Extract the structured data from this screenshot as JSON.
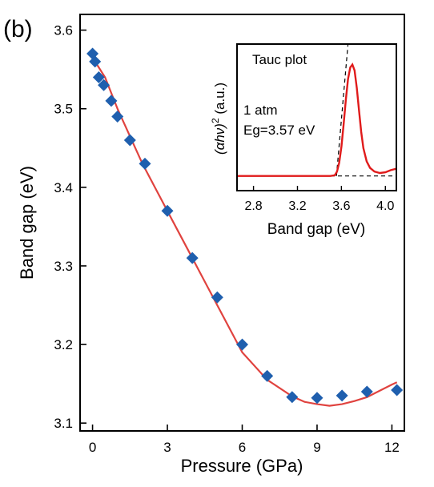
{
  "panel_label": "(b)",
  "colors": {
    "marker": "#1f5fae",
    "fit": "#e0433f",
    "inset_curve": "#e01b1b",
    "axis": "#000000"
  },
  "chart_data": [
    {
      "type": "scatter",
      "xlabel": "Pressure (GPa)",
      "ylabel": "Band gap (eV)",
      "xlim": [
        -0.5,
        12.5
      ],
      "ylim": [
        3.09,
        3.62
      ],
      "xticks": [
        0,
        3,
        6,
        9,
        12
      ],
      "yticks": [
        3.1,
        3.2,
        3.3,
        3.4,
        3.5,
        3.6
      ],
      "xtick_labels": [
        "0",
        "3",
        "6",
        "9",
        "12"
      ],
      "ytick_labels": [
        "3.1",
        "3.2",
        "3.3",
        "3.4",
        "3.5",
        "3.6"
      ],
      "series": [
        {
          "marker": "diamond",
          "x": [
            0.0,
            0.1,
            0.25,
            0.45,
            0.75,
            1.0,
            1.5,
            2.1,
            3.0,
            4.0,
            5.0,
            6.0,
            7.0,
            8.0,
            9.0,
            10.0,
            11.0,
            12.2
          ],
          "y": [
            3.57,
            3.56,
            3.54,
            3.53,
            3.51,
            3.49,
            3.46,
            3.43,
            3.37,
            3.31,
            3.26,
            3.2,
            3.16,
            3.133,
            3.132,
            3.135,
            3.14,
            3.142
          ]
        },
        {
          "type": "line",
          "x": [
            0.0,
            0.5,
            1.0,
            2.0,
            3.0,
            4.0,
            5.0,
            6.0,
            7.0,
            8.0,
            8.5,
            9.0,
            9.5,
            10.0,
            10.5,
            11.0,
            11.5,
            12.0,
            12.2
          ],
          "y": [
            3.565,
            3.54,
            3.5,
            3.43,
            3.37,
            3.31,
            3.25,
            3.19,
            3.155,
            3.134,
            3.127,
            3.124,
            3.122,
            3.124,
            3.128,
            3.133,
            3.141,
            3.149,
            3.152
          ]
        }
      ]
    },
    {
      "type": "line",
      "title": "Tauc plot",
      "annotations": [
        "1 atm",
        "Eg=3.57 eV"
      ],
      "xlabel": "Band gap (eV)",
      "ylabel_prefix": "(αhν)",
      "ylabel_sup": "2",
      "ylabel_suffix": " (a.u.)",
      "xlim": [
        2.65,
        4.1
      ],
      "ylim": [
        0,
        1
      ],
      "xticks": [
        2.8,
        3.2,
        3.6,
        4.0
      ],
      "xtick_labels": [
        "2.8",
        "3.2",
        "3.6",
        "4.0"
      ],
      "series": [
        {
          "x": [
            2.65,
            3.4,
            3.5,
            3.54,
            3.56,
            3.58,
            3.6,
            3.62,
            3.64,
            3.66,
            3.68,
            3.7,
            3.72,
            3.74,
            3.76,
            3.78,
            3.8,
            3.83,
            3.86,
            3.9,
            3.95,
            4.0,
            4.05,
            4.1
          ],
          "y": [
            0.1,
            0.1,
            0.1,
            0.105,
            0.13,
            0.19,
            0.3,
            0.45,
            0.62,
            0.76,
            0.84,
            0.86,
            0.82,
            0.7,
            0.55,
            0.4,
            0.29,
            0.2,
            0.155,
            0.13,
            0.12,
            0.125,
            0.14,
            0.15
          ]
        },
        {
          "style": "dashed",
          "x": [
            3.555,
            3.66
          ],
          "y": [
            0.1,
            1.0
          ]
        },
        {
          "style": "dashed",
          "x": [
            2.65,
            4.1
          ],
          "y": [
            0.1,
            0.1
          ]
        }
      ]
    }
  ]
}
